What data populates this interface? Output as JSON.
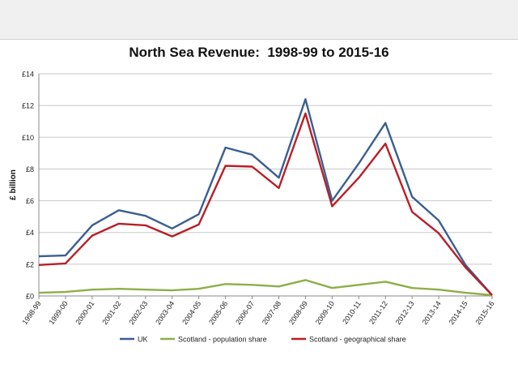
{
  "chart_data": {
    "type": "line",
    "title": "North Sea Revenue:  1998-99 to 2015-16",
    "xlabel": "",
    "ylabel": "£ billion",
    "ylim": [
      0,
      14
    ],
    "yticks": [
      0,
      2,
      4,
      6,
      8,
      10,
      12,
      14
    ],
    "ytick_labels": [
      "£0",
      "£2",
      "£4",
      "£6",
      "£8",
      "£10",
      "£12",
      "£14"
    ],
    "grid": true,
    "legend_position": "bottom",
    "categories": [
      "1998-99",
      "1999-00",
      "2000-01",
      "2001-02",
      "2002-03",
      "2003-04",
      "2004-05",
      "2005-06",
      "2006-07",
      "2007-08",
      "2008-09",
      "2009-10",
      "2010-11",
      "2011-12",
      "2012-13",
      "2013-14",
      "2014-15",
      "2015-16"
    ],
    "series": [
      {
        "name": "UK",
        "color": "#3a5f8f",
        "values": [
          2.5,
          2.55,
          4.45,
          5.4,
          5.05,
          4.25,
          5.15,
          9.35,
          8.9,
          7.45,
          12.4,
          6.0,
          8.35,
          10.9,
          6.25,
          4.75,
          1.95,
          0.05
        ]
      },
      {
        "name": "Scotland - population share",
        "color": "#8fae4a",
        "values": [
          0.2,
          0.25,
          0.4,
          0.45,
          0.4,
          0.35,
          0.45,
          0.75,
          0.7,
          0.6,
          1.0,
          0.5,
          0.7,
          0.9,
          0.5,
          0.4,
          0.2,
          0.05
        ]
      },
      {
        "name": "Scotland - geographical share",
        "color": "#b81f27",
        "values": [
          1.95,
          2.05,
          3.8,
          4.55,
          4.45,
          3.75,
          4.5,
          8.2,
          8.15,
          6.8,
          11.5,
          5.65,
          7.45,
          9.6,
          5.3,
          3.95,
          1.8,
          0.05
        ]
      }
    ]
  }
}
